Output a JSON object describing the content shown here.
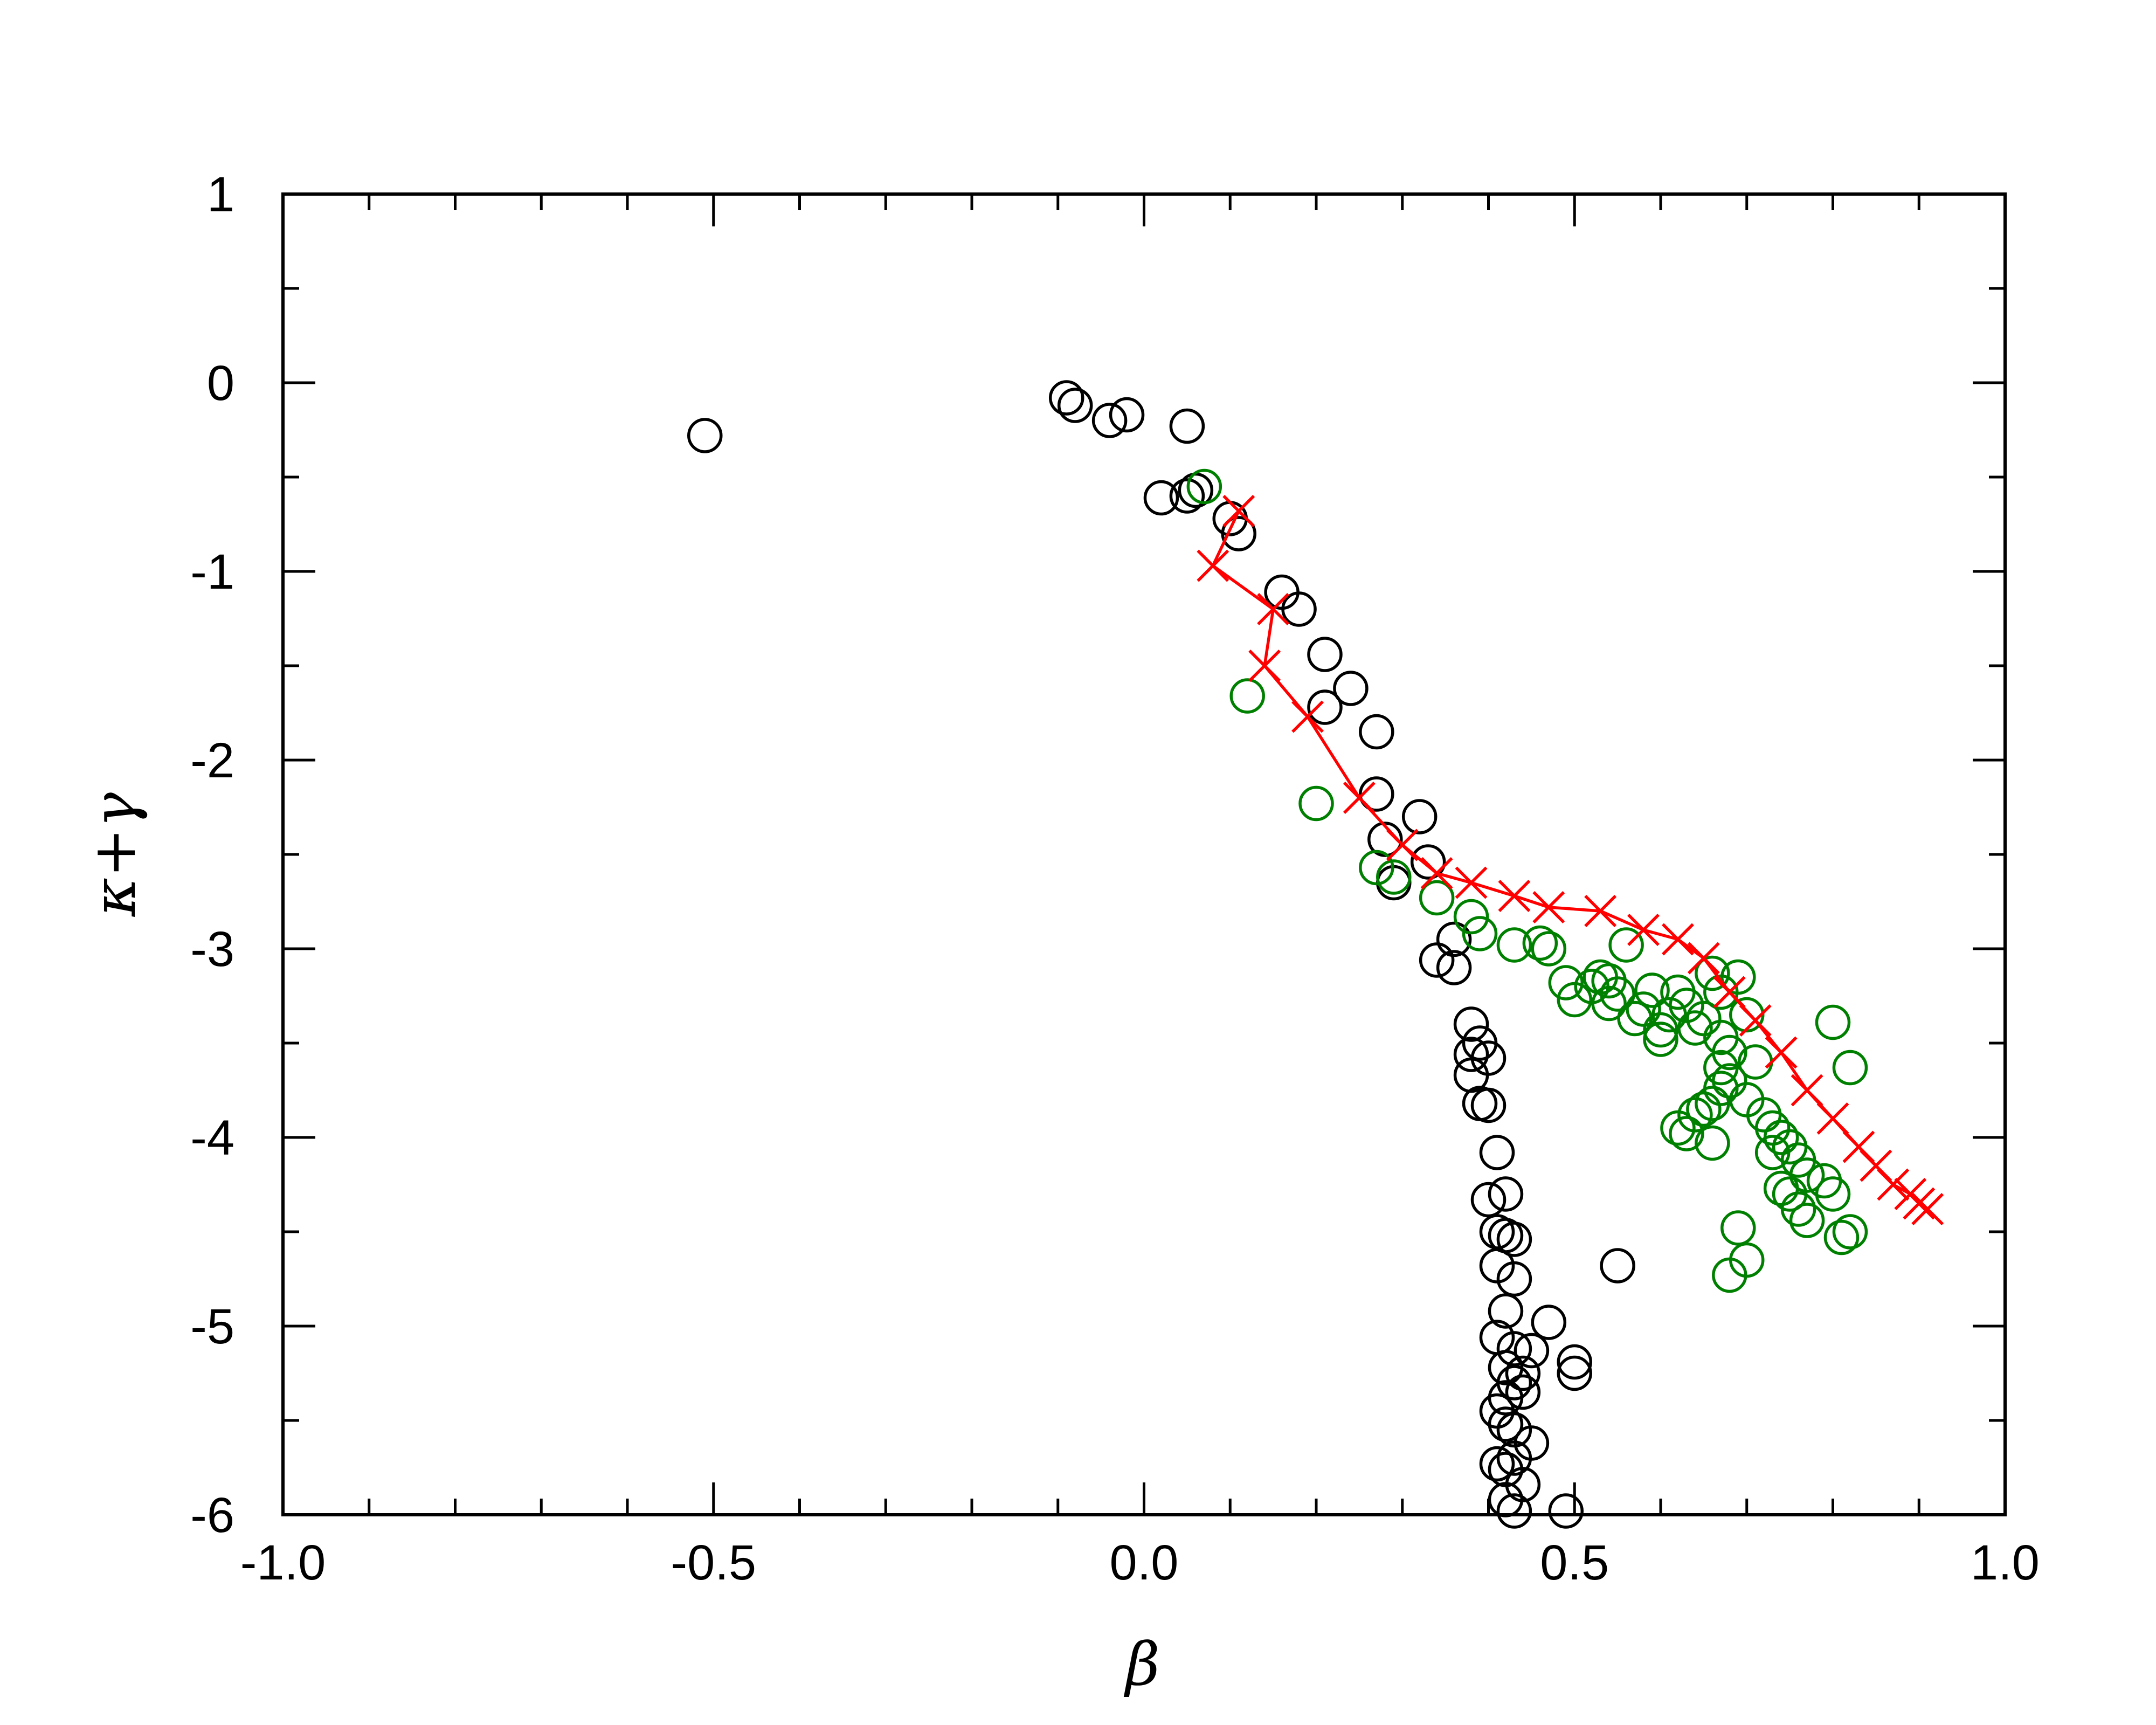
{
  "chart_data": {
    "type": "scatter",
    "xlabel": "β",
    "ylabel": "κ+γ",
    "xlim": [
      -1.0,
      1.0
    ],
    "ylim": [
      -6,
      1
    ],
    "grid": false,
    "x_ticks": [
      "-1.0",
      "-0.5",
      "0.0",
      "0.5",
      "1.0"
    ],
    "y_ticks": [
      "1",
      "0",
      "-1",
      "-2",
      "-3",
      "-4",
      "-5",
      "-6"
    ],
    "x_tick_values": [
      -1.0,
      -0.5,
      0.0,
      0.5,
      1.0
    ],
    "y_tick_values": [
      1,
      0,
      -1,
      -2,
      -3,
      -4,
      -5,
      -6
    ],
    "series": [
      {
        "marker": "circle",
        "color": "#000000",
        "points": [
          [
            -0.51,
            -0.28
          ],
          [
            -0.09,
            -0.08
          ],
          [
            -0.08,
            -0.12
          ],
          [
            -0.04,
            -0.2
          ],
          [
            -0.02,
            -0.17
          ],
          [
            0.05,
            -0.23
          ],
          [
            0.02,
            -0.61
          ],
          [
            0.05,
            -0.6
          ],
          [
            0.06,
            -0.57
          ],
          [
            0.1,
            -0.72
          ],
          [
            0.11,
            -0.8
          ],
          [
            0.16,
            -1.11
          ],
          [
            0.18,
            -1.2
          ],
          [
            0.21,
            -1.44
          ],
          [
            0.21,
            -1.72
          ],
          [
            0.24,
            -1.62
          ],
          [
            0.27,
            -1.85
          ],
          [
            0.27,
            -2.18
          ],
          [
            0.32,
            -2.3
          ],
          [
            0.28,
            -2.42
          ],
          [
            0.29,
            -2.65
          ],
          [
            0.33,
            -2.54
          ],
          [
            0.36,
            -2.95
          ],
          [
            0.36,
            -3.1
          ],
          [
            0.34,
            -3.06
          ],
          [
            0.38,
            -3.4
          ],
          [
            0.38,
            -3.56
          ],
          [
            0.39,
            -3.5
          ],
          [
            0.38,
            -3.67
          ],
          [
            0.4,
            -3.58
          ],
          [
            0.4,
            -3.83
          ],
          [
            0.39,
            -3.82
          ],
          [
            0.41,
            -4.08
          ],
          [
            0.4,
            -4.33
          ],
          [
            0.42,
            -4.3
          ],
          [
            0.41,
            -4.5
          ],
          [
            0.42,
            -4.52
          ],
          [
            0.43,
            -4.54
          ],
          [
            0.41,
            -4.68
          ],
          [
            0.43,
            -4.75
          ],
          [
            0.42,
            -4.92
          ],
          [
            0.47,
            -4.98
          ],
          [
            0.41,
            -5.06
          ],
          [
            0.43,
            -5.12
          ],
          [
            0.45,
            -5.13
          ],
          [
            0.42,
            -5.22
          ],
          [
            0.44,
            -5.25
          ],
          [
            0.43,
            -5.3
          ],
          [
            0.44,
            -5.35
          ],
          [
            0.42,
            -5.38
          ],
          [
            0.41,
            -5.45
          ],
          [
            0.42,
            -5.52
          ],
          [
            0.43,
            -5.55
          ],
          [
            0.45,
            -5.62
          ],
          [
            0.43,
            -5.7
          ],
          [
            0.41,
            -5.73
          ],
          [
            0.42,
            -5.76
          ],
          [
            0.44,
            -5.84
          ],
          [
            0.42,
            -5.92
          ],
          [
            0.43,
            -5.98
          ],
          [
            0.5,
            -5.19
          ],
          [
            0.5,
            -5.25
          ],
          [
            0.49,
            -5.98
          ],
          [
            0.55,
            -4.68
          ]
        ]
      },
      {
        "marker": "circle",
        "color": "#008000",
        "points": [
          [
            0.07,
            -0.55
          ],
          [
            0.12,
            -1.66
          ],
          [
            0.2,
            -2.23
          ],
          [
            0.27,
            -2.57
          ],
          [
            0.29,
            -2.62
          ],
          [
            0.34,
            -2.73
          ],
          [
            0.38,
            -2.83
          ],
          [
            0.39,
            -2.92
          ],
          [
            0.43,
            -2.98
          ],
          [
            0.46,
            -2.97
          ],
          [
            0.47,
            -3.0
          ],
          [
            0.49,
            -3.18
          ],
          [
            0.5,
            -3.27
          ],
          [
            0.52,
            -3.2
          ],
          [
            0.53,
            -3.15
          ],
          [
            0.54,
            -3.17
          ],
          [
            0.54,
            -3.29
          ],
          [
            0.55,
            -3.24
          ],
          [
            0.56,
            -2.98
          ],
          [
            0.57,
            -3.37
          ],
          [
            0.58,
            -3.32
          ],
          [
            0.59,
            -3.22
          ],
          [
            0.6,
            -3.43
          ],
          [
            0.6,
            -3.48
          ],
          [
            0.61,
            -3.35
          ],
          [
            0.62,
            -3.23
          ],
          [
            0.63,
            -3.3
          ],
          [
            0.64,
            -3.42
          ],
          [
            0.65,
            -3.37
          ],
          [
            0.66,
            -3.13
          ],
          [
            0.67,
            -3.23
          ],
          [
            0.67,
            -3.47
          ],
          [
            0.68,
            -3.55
          ],
          [
            0.69,
            -3.15
          ],
          [
            0.7,
            -3.35
          ],
          [
            0.71,
            -3.6
          ],
          [
            0.67,
            -3.63
          ],
          [
            0.67,
            -3.74
          ],
          [
            0.68,
            -3.7
          ],
          [
            0.66,
            -3.82
          ],
          [
            0.65,
            -3.85
          ],
          [
            0.64,
            -3.88
          ],
          [
            0.62,
            -3.95
          ],
          [
            0.63,
            -3.98
          ],
          [
            0.66,
            -4.03
          ],
          [
            0.7,
            -3.8
          ],
          [
            0.72,
            -3.88
          ],
          [
            0.73,
            -3.95
          ],
          [
            0.74,
            -4.0
          ],
          [
            0.75,
            -4.05
          ],
          [
            0.76,
            -4.12
          ],
          [
            0.77,
            -4.2
          ],
          [
            0.73,
            -4.08
          ],
          [
            0.74,
            -4.27
          ],
          [
            0.75,
            -4.3
          ],
          [
            0.76,
            -4.38
          ],
          [
            0.77,
            -4.44
          ],
          [
            0.79,
            -4.23
          ],
          [
            0.8,
            -4.3
          ],
          [
            0.8,
            -3.39
          ],
          [
            0.82,
            -3.63
          ],
          [
            0.81,
            -4.53
          ],
          [
            0.82,
            -4.5
          ],
          [
            0.69,
            -4.48
          ],
          [
            0.7,
            -4.65
          ],
          [
            0.68,
            -4.73
          ]
        ]
      },
      {
        "marker": "cross",
        "color": "#ff0000",
        "connected": true,
        "points": [
          [
            0.11,
            -0.68
          ],
          [
            0.08,
            -0.97
          ],
          [
            0.15,
            -1.2
          ],
          [
            0.14,
            -1.5
          ],
          [
            0.19,
            -1.77
          ],
          [
            0.25,
            -2.2
          ],
          [
            0.3,
            -2.45
          ],
          [
            0.34,
            -2.6
          ],
          [
            0.38,
            -2.65
          ],
          [
            0.43,
            -2.72
          ],
          [
            0.47,
            -2.78
          ],
          [
            0.53,
            -2.8
          ],
          [
            0.58,
            -2.9
          ],
          [
            0.62,
            -2.95
          ],
          [
            0.65,
            -3.05
          ],
          [
            0.68,
            -3.23
          ],
          [
            0.71,
            -3.38
          ],
          [
            0.74,
            -3.55
          ],
          [
            0.77,
            -3.75
          ],
          [
            0.8,
            -3.9
          ],
          [
            0.83,
            -4.05
          ],
          [
            0.85,
            -4.15
          ],
          [
            0.87,
            -4.25
          ],
          [
            0.89,
            -4.3
          ],
          [
            0.9,
            -4.35
          ],
          [
            0.91,
            -4.38
          ]
        ]
      }
    ]
  }
}
